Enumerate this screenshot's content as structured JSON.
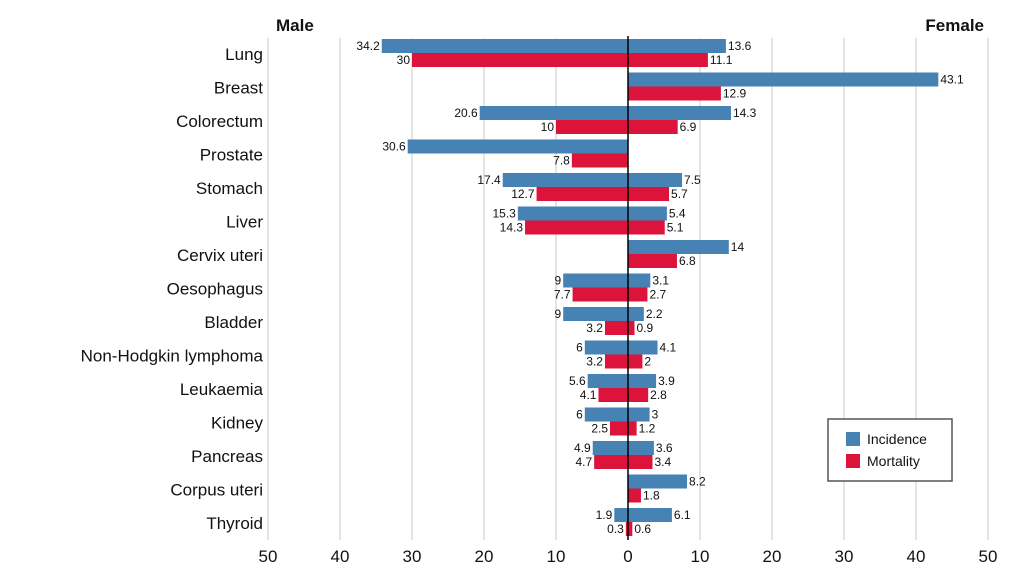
{
  "chart_data": {
    "type": "bar",
    "orientation": "horizontal-butterfly",
    "left_panel_title": "Male",
    "right_panel_title": "Female",
    "categories": [
      "Lung",
      "Breast",
      "Colorectum",
      "Prostate",
      "Stomach",
      "Liver",
      "Cervix uteri",
      "Oesophagus",
      "Bladder",
      "Non-Hodgkin lymphoma",
      "Leukaemia",
      "Kidney",
      "Pancreas",
      "Corpus uteri",
      "Thyroid"
    ],
    "series": [
      {
        "name": "Incidence",
        "color": "#4682b4",
        "male": [
          34.2,
          null,
          20.6,
          30.6,
          17.4,
          15.3,
          null,
          9,
          9,
          6,
          5.6,
          6,
          4.9,
          null,
          1.9
        ],
        "female": [
          13.6,
          43.1,
          14.3,
          null,
          7.5,
          5.4,
          14,
          3.1,
          2.2,
          4.1,
          3.9,
          3,
          3.6,
          8.2,
          6.1
        ]
      },
      {
        "name": "Mortality",
        "color": "#dc143c",
        "male": [
          30,
          null,
          10,
          7.8,
          12.7,
          14.3,
          null,
          7.7,
          3.2,
          3.2,
          4.1,
          2.5,
          4.7,
          null,
          0.3
        ],
        "female": [
          11.1,
          12.9,
          6.9,
          null,
          5.7,
          5.1,
          6.8,
          2.7,
          0.9,
          2,
          2.8,
          1.2,
          3.4,
          1.8,
          0.6
        ]
      }
    ],
    "xlim": [
      -50,
      50
    ],
    "xticks": [
      -50,
      -40,
      -30,
      -20,
      -10,
      0,
      10,
      20,
      30,
      40,
      50
    ],
    "xtick_labels": [
      "50",
      "40",
      "30",
      "20",
      "10",
      "0",
      "10",
      "20",
      "30",
      "40",
      "50"
    ],
    "grid": true,
    "legend_position": "bottom-right"
  }
}
